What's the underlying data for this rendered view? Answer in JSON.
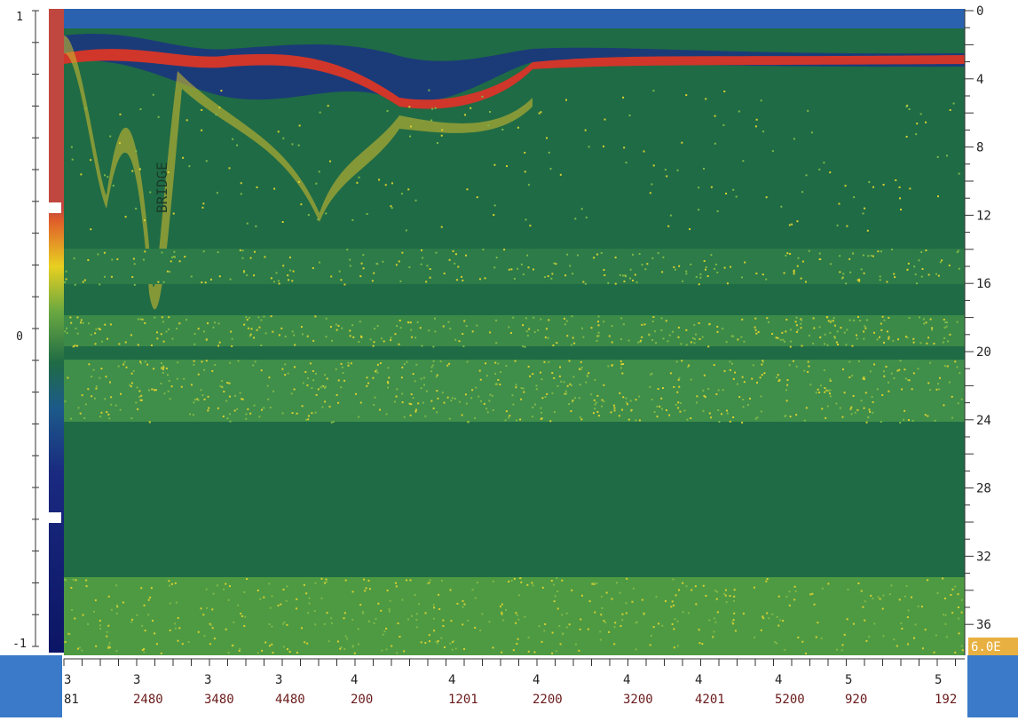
{
  "left_scale": {
    "labels": [
      "1",
      "0",
      "-1"
    ]
  },
  "depth_scale": {
    "labels": [
      "0",
      "4",
      "8",
      "12",
      "16",
      "20",
      "24",
      "28",
      "32",
      "36"
    ]
  },
  "time_axis": {
    "labels": [
      {
        "top": "3",
        "bottom": "81"
      },
      {
        "top": "3",
        "bottom": "2480"
      },
      {
        "top": "3",
        "bottom": "3480"
      },
      {
        "top": "3",
        "bottom": "4480"
      },
      {
        "top": "4",
        "bottom": "200"
      },
      {
        "top": "4",
        "bottom": "1201"
      },
      {
        "top": "4",
        "bottom": "2200"
      },
      {
        "top": "4",
        "bottom": "3200"
      },
      {
        "top": "4",
        "bottom": "4201"
      },
      {
        "top": "4",
        "bottom": "5200"
      },
      {
        "top": "5",
        "bottom": "920"
      },
      {
        "top": "5",
        "bottom": "192"
      }
    ]
  },
  "annotation": "BRIDGE",
  "status": "6.0E"
}
